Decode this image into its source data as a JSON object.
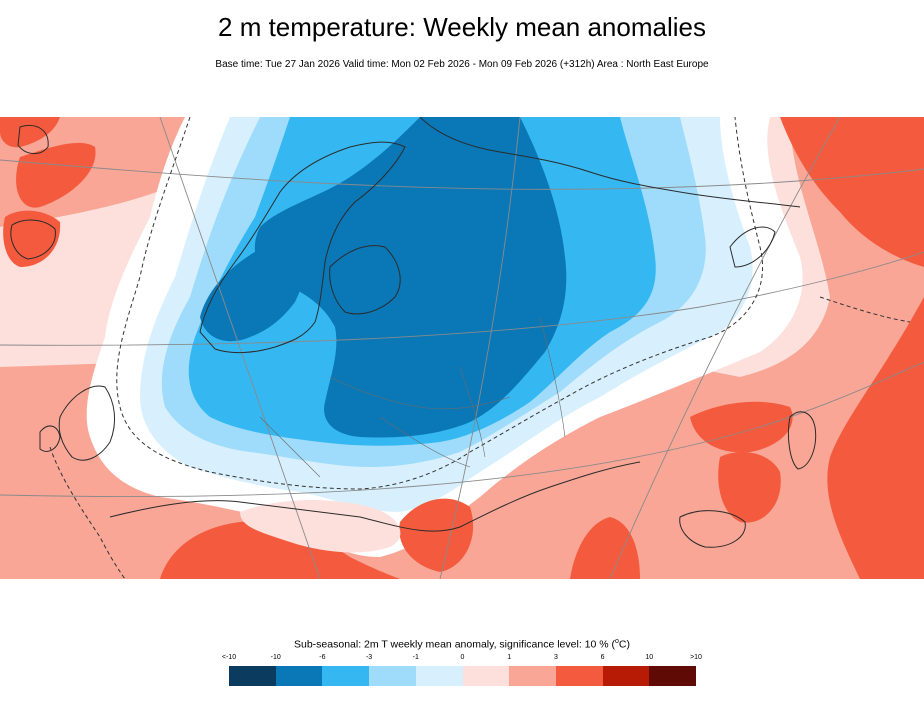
{
  "title": "2 m temperature: Weekly mean anomalies",
  "subtitle": "Base time: Tue 27 Jan 2026 Valid time: Mon 02 Feb 2026 - Mon 09 Feb 2026 (+312h) Area : North East Europe",
  "legend": {
    "title_main": "Sub-seasonal: 2m T weekly mean anomaly, significance level: 10 % (",
    "title_sup": "o",
    "title_end": "C)",
    "tick_labels": [
      "<-10",
      "-10",
      "-6",
      "-3",
      "-1",
      "0",
      "1",
      "3",
      "6",
      "10",
      ">10"
    ],
    "colors": [
      "#0b3c5f",
      "#0a78b7",
      "#35b8f2",
      "#9fdcfb",
      "#d8f0fd",
      "#fde0dc",
      "#f9a696",
      "#f45b3e",
      "#b71b06",
      "#5f0a04"
    ]
  },
  "map": {
    "region": "North East Europe",
    "colors": {
      "sea_white": "#ffffff",
      "warm_light": "#fde0dc",
      "warm_medium": "#f9a696",
      "warm_strong": "#f45b3e",
      "cold_light": "#d8f0fd",
      "cold_light2": "#9fdcfb",
      "cold_medium": "#35b8f2",
      "cold_strong": "#0a78b7",
      "coast": "#333333",
      "graticule": "#8a8a8a"
    }
  }
}
